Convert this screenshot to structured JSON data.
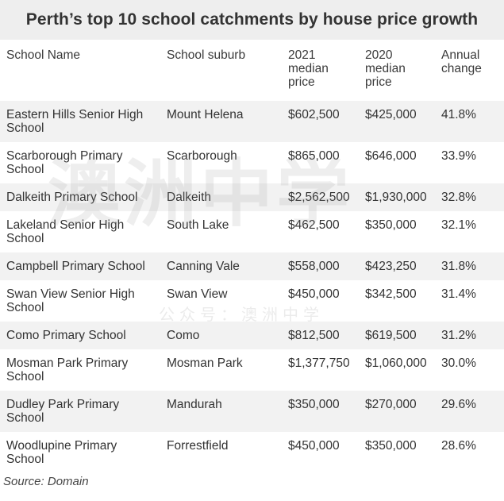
{
  "title": "Perth’s top 10 school catchments by house price growth",
  "headers": [
    "School Name",
    "School suburb",
    "2021 median price",
    "2020 median price",
    "Annual change"
  ],
  "rows": [
    [
      "Eastern Hills Senior High School",
      "Mount Helena",
      "$602,500",
      "$425,000",
      "41.8%"
    ],
    [
      "Scarborough Primary School",
      "Scarborough",
      "$865,000",
      "$646,000",
      "33.9%"
    ],
    [
      "Dalkeith Primary School",
      "Dalkeith",
      "$2,562,500",
      "$1,930,000",
      "32.8%"
    ],
    [
      "Lakeland Senior High School",
      "South Lake",
      "$462,500",
      "$350,000",
      "32.1%"
    ],
    [
      "Campbell Primary School",
      "Canning Vale",
      "$558,000",
      "$423,250",
      "31.8%"
    ],
    [
      "Swan View Senior High School",
      "Swan View",
      "$450,000",
      "$342,500",
      "31.4%"
    ],
    [
      "Como Primary School",
      "Como",
      "$812,500",
      "$619,500",
      "31.2%"
    ],
    [
      "Mosman Park Primary School",
      "Mosman Park",
      "$1,377,750",
      "$1,060,000",
      "30.0%"
    ],
    [
      "Dudley Park Primary School",
      "Mandurah",
      "$350,000",
      "$270,000",
      "29.6%"
    ],
    [
      "Woodlupine Primary School",
      "Forrestfield",
      "$450,000",
      "$350,000",
      "28.6%"
    ]
  ],
  "source": "Source: Domain",
  "watermark": {
    "logo_text": "澳洲中学",
    "sub_text": "公众号：澳洲中学"
  },
  "colors": {
    "title_background": "#eeeeee",
    "stripe_background": "#f2f2f2",
    "text": "#333333"
  }
}
